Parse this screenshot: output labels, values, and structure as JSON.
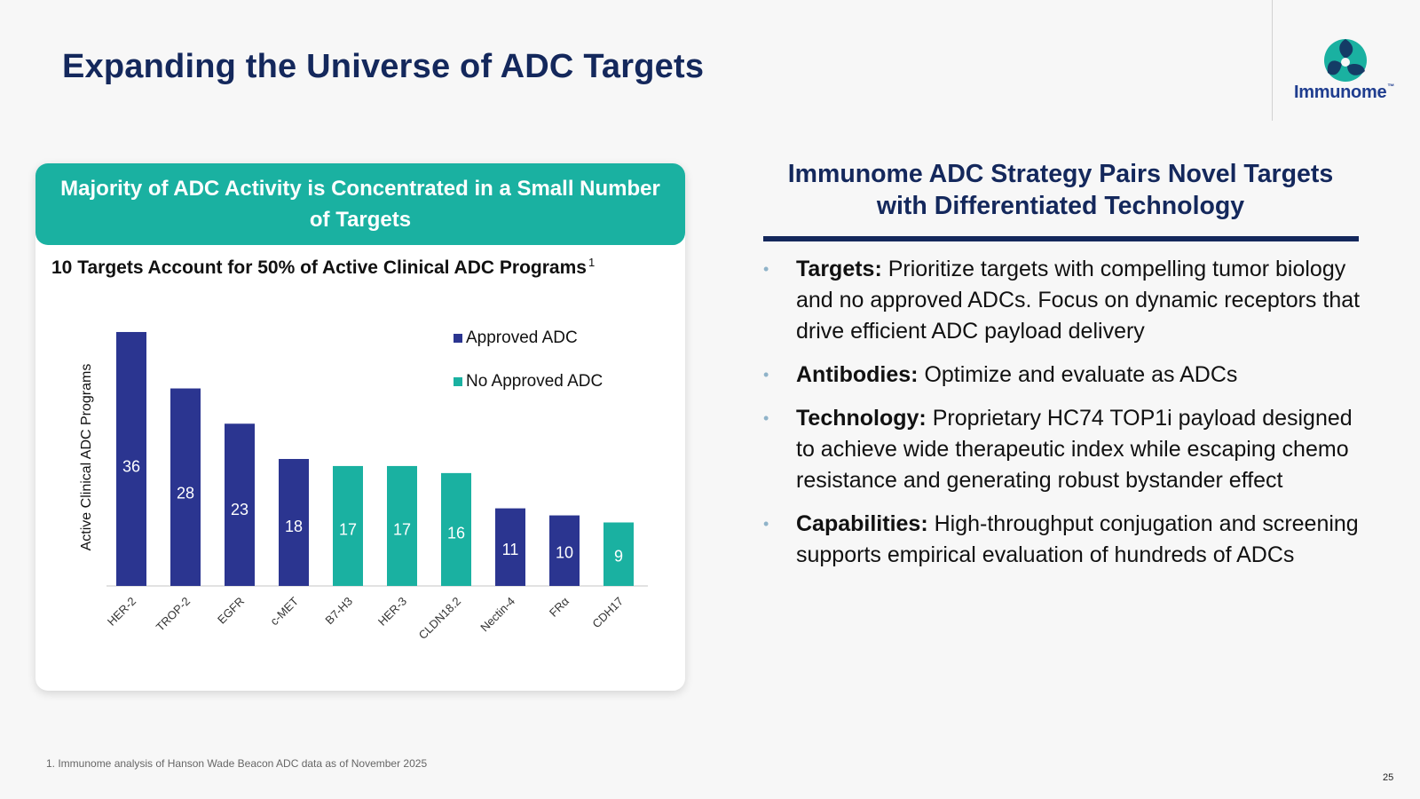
{
  "slide": {
    "title": "Expanding the Universe of ADC Targets",
    "logo_text": "Immunome",
    "logo_tm": "™",
    "footnote": "1. Immunome analysis of Hanson Wade Beacon ADC data as of November 2025",
    "page_number": "25"
  },
  "card": {
    "header": "Majority of ADC Activity is Concentrated in a Small Number of Targets",
    "accent_color": "#1ab1a1"
  },
  "chart_data": {
    "type": "bar",
    "title": "10 Targets Account for 50% of Active Clinical ADC Programs",
    "title_superscript": "1",
    "ylabel": "Active Clinical ADC Programs",
    "xlabel": "",
    "categories": [
      "HER-2",
      "TROP-2",
      "EGFR",
      "c-MET",
      "B7-H3",
      "HER-3",
      "CLDN18.2",
      "Nectin-4",
      "FRα",
      "CDH17"
    ],
    "values": [
      36,
      28,
      23,
      18,
      17,
      17,
      16,
      11,
      10,
      9
    ],
    "group": [
      "Approved ADC",
      "Approved ADC",
      "Approved ADC",
      "Approved ADC",
      "No Approved ADC",
      "No Approved ADC",
      "No Approved ADC",
      "Approved ADC",
      "Approved ADC",
      "No Approved ADC"
    ],
    "legend": [
      {
        "name": "Approved ADC",
        "color": "#2b3590"
      },
      {
        "name": "No Approved ADC",
        "color": "#1ab1a1"
      }
    ],
    "ylim": [
      0,
      40
    ],
    "grid": false,
    "data_labels": true,
    "legend_position": "top-right"
  },
  "right_panel": {
    "title": "Immunome ADC Strategy Pairs Novel Targets with Differentiated Technology",
    "bullets": [
      {
        "label": "Targets:",
        "text": "Prioritize targets with compelling tumor biology and no approved ADCs. Focus on dynamic receptors that drive efficient ADC payload delivery"
      },
      {
        "label": "Antibodies:",
        "text": "Optimize and evaluate as ADCs"
      },
      {
        "label": "Technology:",
        "text": "Proprietary HC74 TOP1i payload designed to achieve wide therapeutic index while escaping chemo resistance and generating robust bystander effect"
      },
      {
        "label": "Capabilities:",
        "text": "High-throughput conjugation and screening supports empirical evaluation of hundreds of ADCs"
      }
    ],
    "bullet_color": "#8fb3c9",
    "title_color": "#14285c"
  }
}
